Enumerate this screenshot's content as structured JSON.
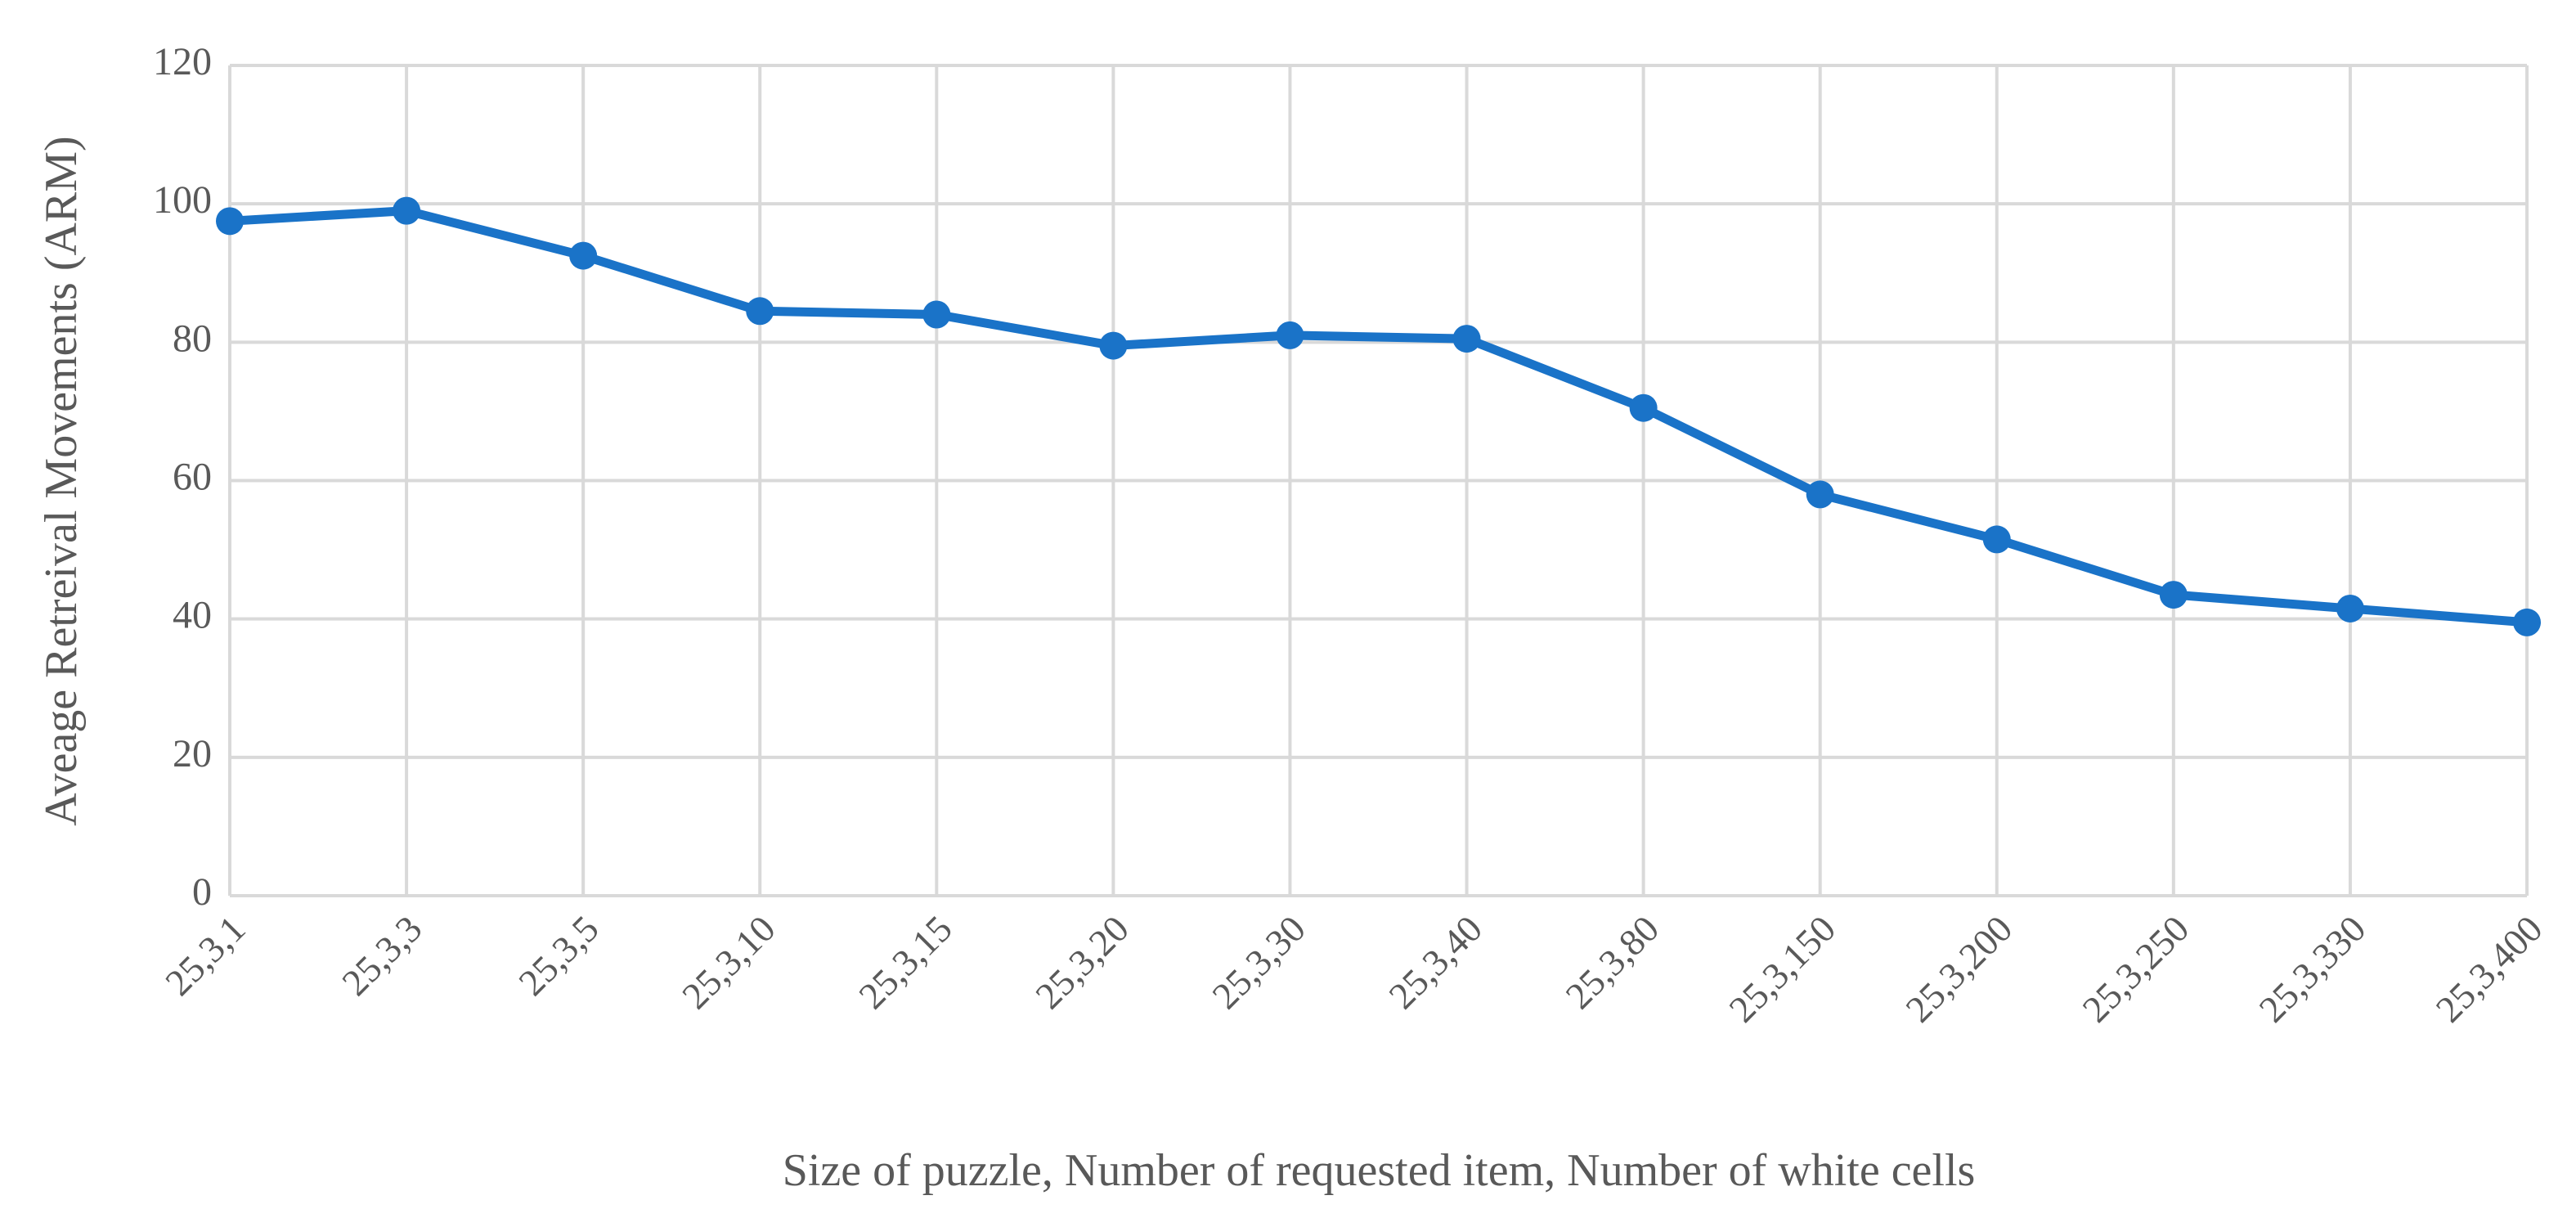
{
  "chart_data": {
    "type": "line",
    "categories": [
      "25,3,1",
      "25,3,3",
      "25,3,5",
      "25,3,10",
      "25,3,15",
      "25,3,20",
      "25,3,30",
      "25,3,40",
      "25,3,80",
      "25,3,150",
      "25,3,200",
      "25,3,250",
      "25,3,330",
      "25,3,400"
    ],
    "series": [
      {
        "name": "ARM",
        "color": "#1a73c8",
        "values": [
          97.5,
          99,
          92.5,
          84.5,
          84,
          79.5,
          81,
          80.5,
          70.5,
          58,
          51.5,
          43.5,
          41.5,
          39.5
        ]
      }
    ],
    "ylim": [
      0,
      120
    ],
    "yticks": [
      0,
      20,
      40,
      60,
      80,
      100,
      120
    ],
    "y_label": "Aveage Retreival Movements (ARM)",
    "x_label": "Size of puzzle, Number of requested item, Number of white cells",
    "grid": true
  }
}
